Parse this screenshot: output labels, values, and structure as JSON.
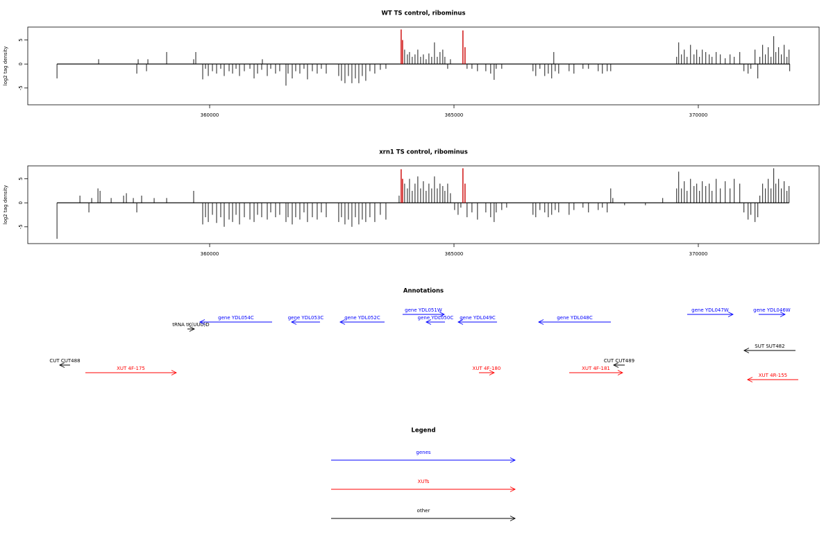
{
  "chart_data": [
    {
      "type": "bar",
      "title": "WT TS control, ribominus",
      "ylabel": "log2 tag density",
      "xlim": [
        356278,
        372472
      ],
      "ylim": [
        -8.5,
        7.7
      ],
      "xticks": [
        360000,
        365000,
        370000
      ],
      "yticks": [
        -5,
        0,
        5
      ],
      "series": [
        {
          "color": "#000000",
          "x": [
            356876,
            357728,
            358509,
            358537,
            358708,
            358736,
            359120,
            359673,
            359716,
            359858,
            359915,
            359972,
            360057,
            360142,
            360227,
            360298,
            360398,
            360469,
            360540,
            360611,
            360710,
            360824,
            360909,
            360980,
            361065,
            361079,
            361179,
            361250,
            361349,
            361434,
            361562,
            361605,
            361690,
            361761,
            361846,
            361931,
            362002,
            362102,
            362201,
            362286,
            362386,
            362641,
            362698,
            362769,
            362840,
            362911,
            362982,
            363053,
            363124,
            363195,
            363280,
            363380,
            363493,
            363607,
            363990,
            364047,
            364090,
            364146,
            364203,
            364260,
            364317,
            364374,
            364430,
            364487,
            364544,
            364601,
            364658,
            364714,
            364771,
            364814,
            364871,
            364928,
            365268,
            365368,
            365481,
            365652,
            365751,
            365822,
            365865,
            365978,
            366617,
            366674,
            366759,
            366858,
            366930,
            367000,
            367043,
            367072,
            367143,
            367356,
            367455,
            367640,
            367753,
            367952,
            368037,
            368136,
            368208,
            369557,
            369599,
            369656,
            369713,
            369770,
            369841,
            369912,
            369968,
            370025,
            370082,
            370153,
            370224,
            370281,
            370366,
            370451,
            370551,
            370650,
            370735,
            370849,
            370934,
            371019,
            371076,
            371161,
            371218,
            371260,
            371317,
            371374,
            371431,
            371488,
            371544,
            371587,
            371644,
            371700,
            371757,
            371814,
            371857,
            371871
          ],
          "values": [
            -3,
            1,
            -2,
            1,
            -1.5,
            1,
            2.5,
            1,
            2.5,
            -3.2,
            -1,
            -2.5,
            -1.5,
            -2,
            -1,
            -2.5,
            -1.5,
            -2,
            -1,
            -2.5,
            -1.5,
            -1,
            -3,
            -2,
            -1.2,
            1,
            -2.5,
            -1,
            -2,
            -1.5,
            -4.5,
            -2,
            -3,
            -1.5,
            -2,
            -1,
            -3.2,
            -1.5,
            -2,
            -1,
            -2,
            -2.5,
            -3.5,
            -4,
            -2.5,
            -4,
            -3,
            -4,
            -2.5,
            -3.5,
            -1.5,
            -2,
            -1.2,
            -1,
            3,
            2,
            2.5,
            1.5,
            2,
            3,
            1.5,
            2,
            1,
            2.2,
            1.5,
            4.5,
            1.5,
            2.5,
            3,
            1.5,
            -1,
            1,
            -1,
            -1,
            -1.5,
            -1.5,
            -2,
            -3.3,
            -1,
            -1,
            -1.5,
            -2.5,
            -1,
            -2.5,
            -2,
            -3,
            2.5,
            -1.5,
            -2,
            -1.5,
            -2,
            -1,
            -1,
            -1.5,
            -2,
            -1.5,
            -1.5,
            1.5,
            4.5,
            2,
            3,
            1.5,
            4,
            2,
            3,
            1.5,
            3,
            2.5,
            2,
            1.5,
            2.5,
            2,
            1.2,
            2,
            1.5,
            2.5,
            -1.5,
            -2,
            -1,
            3,
            -3,
            1.5,
            4,
            2,
            3.5,
            1.5,
            5.8,
            2.5,
            3.5,
            2,
            4,
            1.5,
            3,
            -1.5
          ]
        },
        {
          "color": "#cc0000",
          "x": [
            363919,
            363948,
            365183,
            365226
          ],
          "values": [
            7.2,
            5,
            7,
            3.5
          ]
        }
      ]
    },
    {
      "type": "bar",
      "title": "xrn1 TS control, ribominus",
      "ylabel": "log2 tag density",
      "xlim": [
        356278,
        372472
      ],
      "ylim": [
        -8.5,
        7.7
      ],
      "xticks": [
        360000,
        365000,
        370000
      ],
      "yticks": [
        -5,
        0,
        5
      ],
      "series": [
        {
          "color": "#000000",
          "x": [
            356876,
            357345,
            357529,
            357586,
            357714,
            357757,
            357984,
            358239,
            358296,
            358438,
            358509,
            358608,
            358864,
            359120,
            359673,
            359858,
            359915,
            359972,
            360057,
            360142,
            360227,
            360298,
            360398,
            360469,
            360540,
            360611,
            360710,
            360824,
            360909,
            360980,
            361065,
            361179,
            361250,
            361349,
            361434,
            361562,
            361605,
            361690,
            361761,
            361846,
            361931,
            362002,
            362102,
            362201,
            362286,
            362386,
            362641,
            362698,
            362769,
            362840,
            362911,
            362982,
            363053,
            363124,
            363195,
            363280,
            363380,
            363493,
            363607,
            363877,
            363990,
            364047,
            364090,
            364146,
            364203,
            364260,
            364317,
            364374,
            364430,
            364487,
            364544,
            364601,
            364658,
            364714,
            364771,
            364814,
            364871,
            364928,
            365013,
            365084,
            365141,
            365268,
            365368,
            365481,
            365652,
            365751,
            365822,
            365865,
            365978,
            366078,
            366617,
            366674,
            366759,
            366858,
            366930,
            367000,
            367072,
            367143,
            367356,
            367455,
            367640,
            367753,
            367952,
            368037,
            368136,
            368208,
            368251,
            368492,
            368918,
            369272,
            369557,
            369599,
            369656,
            369713,
            369770,
            369841,
            369912,
            369968,
            370025,
            370082,
            370153,
            370224,
            370281,
            370366,
            370451,
            370551,
            370650,
            370735,
            370849,
            370934,
            371019,
            371076,
            371161,
            371218,
            371260,
            371317,
            371374,
            371431,
            371488,
            371544,
            371587,
            371644,
            371700,
            371757,
            371814,
            371857
          ],
          "values": [
            -7.5,
            1.5,
            -2,
            1,
            3,
            2.5,
            1,
            1.5,
            2,
            1,
            -2,
            1.5,
            1,
            1,
            2.5,
            -4.5,
            -3,
            -4,
            -2.5,
            -4.2,
            -3,
            -5,
            -3.5,
            -4,
            -2.5,
            -4.5,
            -3,
            -3.5,
            -4,
            -2.5,
            -3,
            -3.5,
            -2,
            -3,
            -2.5,
            -4,
            -3,
            -4.5,
            -3,
            -3.5,
            -2,
            -4,
            -3,
            -3.5,
            -2,
            -3,
            -4,
            -3,
            -4.5,
            -3.5,
            -5,
            -3,
            -4.5,
            -3.5,
            -4,
            -3,
            -4,
            -2.5,
            -3.5,
            1.5,
            4,
            3,
            5,
            2.5,
            4,
            5.5,
            3,
            4.5,
            2.5,
            4,
            3,
            5.5,
            3,
            4,
            3.5,
            2.5,
            4,
            2,
            -1.5,
            -2.5,
            -1,
            -3,
            -2,
            -3.5,
            -2,
            -3,
            -4,
            -2,
            -1.5,
            -1,
            -2.5,
            -3,
            -1.5,
            -2,
            -3,
            -2.5,
            -1.5,
            -2,
            -2.5,
            -1.5,
            -1,
            -2,
            -1.5,
            -1,
            -2,
            3,
            1,
            -0.5,
            -0.5,
            1,
            3,
            6.5,
            3,
            4.5,
            2.5,
            5,
            3.5,
            4,
            2.5,
            4.5,
            3.5,
            4,
            2.5,
            5,
            3,
            4.5,
            3,
            5,
            4,
            -2,
            -3.5,
            -2.5,
            -4,
            -3,
            1.5,
            4,
            3,
            5,
            3,
            7.2,
            4,
            5,
            3,
            4.5,
            2.5,
            3.5
          ]
        },
        {
          "color": "#cc0000",
          "x": [
            363919,
            363948,
            365183,
            365226
          ],
          "values": [
            7,
            5,
            7.2,
            4
          ]
        }
      ]
    },
    {
      "type": "annotation",
      "title": "Annotations",
      "xlim": [
        356278,
        372472
      ],
      "features": [
        {
          "label": "gene YDL054C",
          "start": 361278,
          "end": 359800,
          "category": "genes"
        },
        {
          "label": "gene YDL053C",
          "start": 362258,
          "end": 361676,
          "category": "genes"
        },
        {
          "label": "gene YDL052C",
          "start": 363579,
          "end": 362670,
          "category": "genes"
        },
        {
          "label": "gene YDL051W",
          "start": 363948,
          "end": 364801,
          "category": "genes"
        },
        {
          "label": "gene YDL050C",
          "start": 364815,
          "end": 364431,
          "category": "genes"
        },
        {
          "label": "gene YDL049C",
          "start": 365880,
          "end": 365085,
          "category": "genes"
        },
        {
          "label": "gene YDL048C",
          "start": 368210,
          "end": 366733,
          "category": "genes"
        },
        {
          "label": "gene YDL047W",
          "start": 369772,
          "end": 370710,
          "category": "genes"
        },
        {
          "label": "gene YDL046W",
          "start": 371235,
          "end": 371775,
          "category": "genes"
        },
        {
          "label": "tRNA tK(UUU)D",
          "start": 359545,
          "end": 359687,
          "category": "other"
        },
        {
          "label": "CUT CUT488",
          "start": 357144,
          "end": 356931,
          "category": "other"
        },
        {
          "label": "XUT 4F-175",
          "start": 357457,
          "end": 359318,
          "category": "XUTs"
        },
        {
          "label": "XUT 4F-180",
          "start": 365511,
          "end": 365823,
          "category": "XUTs"
        },
        {
          "label": "XUT 4F-181",
          "start": 367358,
          "end": 368451,
          "category": "XUTs"
        },
        {
          "label": "CUT CUT489",
          "start": 368494,
          "end": 368267,
          "category": "other"
        },
        {
          "label": "SUT SUT482",
          "start": 371988,
          "end": 370937,
          "category": "other"
        },
        {
          "label": "XUT 4R-155",
          "start": 372045,
          "end": 371008,
          "category": "XUTs"
        }
      ],
      "legend": {
        "title": "Legend",
        "items": [
          {
            "name": "genes",
            "color": "#0000ff"
          },
          {
            "name": "XUTs",
            "color": "#ff0000"
          },
          {
            "name": "other",
            "color": "#000000"
          }
        ]
      }
    }
  ]
}
